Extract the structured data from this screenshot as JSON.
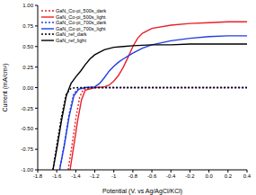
{
  "chart_data": {
    "type": "line",
    "xlabel": "Potential (V. vs Ag/AgCl/KCl)",
    "ylabel": "Current (mA/cm²)",
    "xlim": [
      -1.8,
      0.4
    ],
    "xticks": [
      -1.8,
      -1.6,
      -1.4,
      -1.2,
      -1.0,
      -0.8,
      -0.6,
      -0.4,
      -0.2,
      {
        "value": 0,
        "label": "0.0"
      },
      0.2,
      0.4
    ],
    "ylim": [
      -1,
      1
    ],
    "yticks": [
      {
        "value": -1,
        "label": "-1.00"
      },
      {
        "value": -0.75,
        "label": "-0.75"
      },
      {
        "value": -0.5,
        "label": "-0.50"
      },
      {
        "value": -0.25,
        "label": "-0.25"
      },
      {
        "value": 0,
        "label": "0.00"
      },
      {
        "value": 0.25,
        "label": "0.25"
      },
      {
        "value": 0.5,
        "label": "0.50"
      },
      {
        "value": 0.75,
        "label": "0.75"
      },
      {
        "value": 1,
        "label": "1.00"
      }
    ],
    "grid": false,
    "legend": "upper left",
    "series": [
      {
        "name": "GaN_Co-pi_500s_dark",
        "color": "#e8202a",
        "line_style": "dotted",
        "x": [
          -1.48,
          -1.44,
          -1.4,
          -1.36,
          -1.32,
          -1.25,
          -1.0,
          -0.5,
          0,
          0.4
        ],
        "values": [
          -1,
          -0.7,
          -0.38,
          -0.12,
          -0.02,
          0,
          0,
          0,
          0,
          0
        ]
      },
      {
        "name": "GaN_Co-pi_500s_light",
        "color": "#e8202a",
        "line_style": "solid",
        "x": [
          -1.46,
          -1.42,
          -1.38,
          -1.34,
          -1.3,
          -1.2,
          -1.1,
          -1.05,
          -1.0,
          -0.95,
          -0.9,
          -0.85,
          -0.8,
          -0.75,
          -0.7,
          -0.6,
          -0.4,
          -0.2,
          0,
          0.2,
          0.4
        ],
        "values": [
          -1,
          -0.7,
          -0.4,
          -0.15,
          -0.03,
          0,
          0.01,
          0.03,
          0.08,
          0.15,
          0.25,
          0.37,
          0.5,
          0.6,
          0.66,
          0.72,
          0.76,
          0.78,
          0.79,
          0.8,
          0.8
        ]
      },
      {
        "name": "GaN_Co-pi_700s_dark",
        "color": "#1f3fe0",
        "line_style": "dotted",
        "x": [
          -1.57,
          -1.52,
          -1.47,
          -1.42,
          -1.37,
          -1.3,
          -1.0,
          -0.5,
          0,
          0.4
        ],
        "values": [
          -1,
          -0.68,
          -0.32,
          -0.07,
          -0.01,
          0,
          0,
          0,
          0,
          0
        ]
      },
      {
        "name": "GaN_Co-pi_700s_light",
        "color": "#1f3fe0",
        "line_style": "solid",
        "x": [
          -1.57,
          -1.52,
          -1.47,
          -1.42,
          -1.37,
          -1.3,
          -1.2,
          -1.15,
          -1.1,
          -1.05,
          -1.0,
          -0.95,
          -0.9,
          -0.8,
          -0.7,
          -0.6,
          -0.4,
          -0.2,
          0,
          0.2,
          0.4
        ],
        "values": [
          -1,
          -0.7,
          -0.35,
          -0.1,
          -0.02,
          0,
          0.01,
          0.05,
          0.12,
          0.2,
          0.26,
          0.31,
          0.35,
          0.42,
          0.48,
          0.52,
          0.57,
          0.6,
          0.62,
          0.63,
          0.63
        ]
      },
      {
        "name": "GaN_ref_dark",
        "color": "#000000",
        "line_style": "dotted",
        "x": [
          -1.64,
          -1.6,
          -1.55,
          -1.5,
          -1.45,
          -1.4,
          -1.0,
          -0.5,
          0,
          0.4
        ],
        "values": [
          -1,
          -0.7,
          -0.35,
          -0.08,
          -0.01,
          0,
          0,
          0,
          0,
          0
        ]
      },
      {
        "name": "GaN_ref_light",
        "color": "#000000",
        "line_style": "solid",
        "x": [
          -1.64,
          -1.6,
          -1.55,
          -1.5,
          -1.45,
          -1.4,
          -1.35,
          -1.3,
          -1.25,
          -1.2,
          -1.1,
          -1.0,
          -0.9,
          -0.8,
          -0.6,
          -0.4,
          -0.2,
          0,
          0.2,
          0.4
        ],
        "values": [
          -1,
          -0.75,
          -0.4,
          -0.1,
          0.05,
          0.13,
          0.2,
          0.28,
          0.35,
          0.4,
          0.46,
          0.49,
          0.5,
          0.51,
          0.52,
          0.52,
          0.53,
          0.53,
          0.53,
          0.53
        ]
      }
    ]
  }
}
